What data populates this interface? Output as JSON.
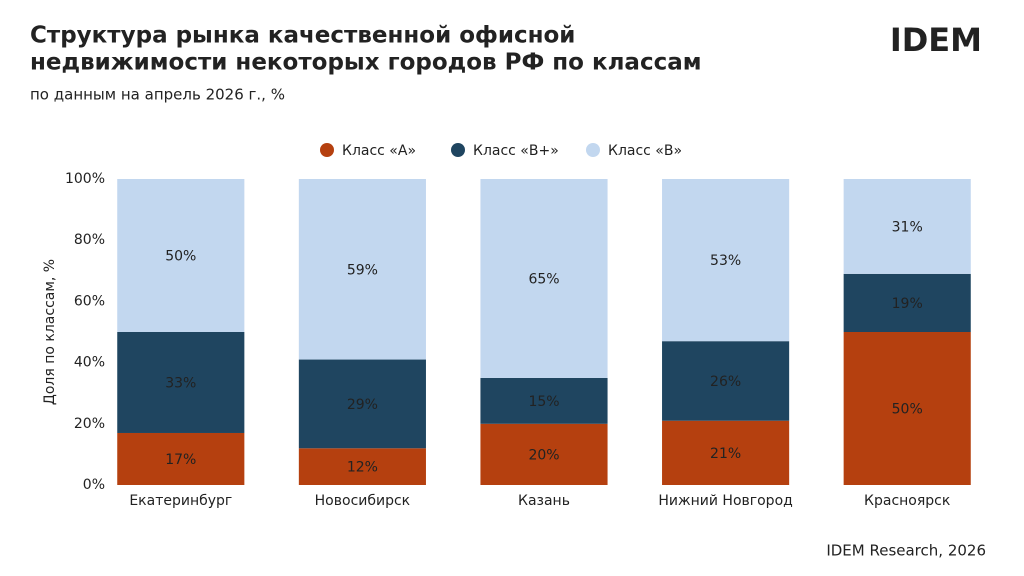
{
  "chart_data": {
    "type": "stacked_bar",
    "title": [
      "Структура рынка качественной офисной",
      "недвижимости некоторых городов РФ по классам"
    ],
    "subtitle": "по данным на апрель 2026 г., %",
    "logo": "IDEM",
    "source": "IDEM Research, 2026",
    "ylabel": "Доля по классам, %",
    "categories": [
      "Екатеринбург",
      "Новосибирск",
      "Казань",
      "Нижний Новгород",
      "Красноярск"
    ],
    "series": [
      {
        "name": "Класс «А»",
        "color": "#b5400f",
        "values": [
          17,
          12,
          20,
          21,
          50
        ],
        "value_labels": [
          "17%",
          "12%",
          "20%",
          "21%",
          "50%"
        ]
      },
      {
        "name": "Класс «В+»",
        "color": "#1f4560",
        "values": [
          33,
          29,
          15,
          26,
          19
        ],
        "value_labels": [
          "33%",
          "29%",
          "15%",
          "26%",
          "19%"
        ]
      },
      {
        "name": "Класс «В»",
        "color": "#c2d7ef",
        "values": [
          50,
          59,
          65,
          53,
          31
        ],
        "value_labels": [
          "50%",
          "59%",
          "65%",
          "53%",
          "31%"
        ]
      }
    ],
    "ylim": [
      0,
      100
    ],
    "yticks": [
      {
        "value": 0,
        "label": "0%"
      },
      {
        "value": 20,
        "label": "20%"
      },
      {
        "value": 40,
        "label": "40%"
      },
      {
        "value": 60,
        "label": "60%"
      },
      {
        "value": 80,
        "label": "80%"
      },
      {
        "value": 100,
        "label": "100%"
      }
    ],
    "grid": false,
    "legend": "top"
  }
}
